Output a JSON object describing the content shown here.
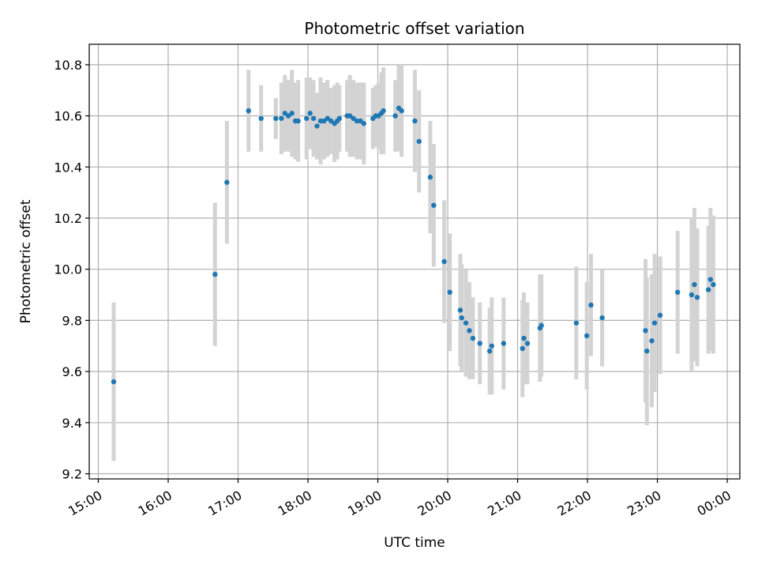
{
  "chart_data": {
    "type": "scatter",
    "title": "Photometric offset variation",
    "xlabel": "UTC time",
    "ylabel": "Photometric offset",
    "grid": true,
    "xlim": [
      14.87,
      24.18
    ],
    "ylim": [
      9.18,
      10.88
    ],
    "x_ticks": [
      15,
      16,
      17,
      18,
      19,
      20,
      21,
      22,
      23,
      24
    ],
    "x_tick_labels": [
      "15:00",
      "16:00",
      "17:00",
      "18:00",
      "19:00",
      "20:00",
      "21:00",
      "22:00",
      "23:00",
      "00:00"
    ],
    "y_ticks": [
      9.2,
      9.4,
      9.6,
      9.8,
      10.0,
      10.2,
      10.4,
      10.6,
      10.8
    ],
    "y_tick_labels": [
      "9.2",
      "9.4",
      "9.6",
      "9.8",
      "10.0",
      "10.2",
      "10.4",
      "10.6",
      "10.8"
    ],
    "series": [
      {
        "name": "offset",
        "marker_color": "#1f77b4",
        "errorbar_color": "#d3d3d3",
        "x": [
          15.22,
          16.67,
          16.84,
          17.15,
          17.33,
          17.54,
          17.62,
          17.67,
          17.72,
          17.77,
          17.82,
          17.86,
          17.98,
          18.03,
          18.08,
          18.13,
          18.18,
          18.23,
          18.28,
          18.33,
          18.38,
          18.42,
          18.45,
          18.56,
          18.6,
          18.65,
          18.7,
          18.75,
          18.8,
          18.93,
          18.97,
          19.01,
          19.05,
          19.08,
          19.25,
          19.3,
          19.34,
          19.53,
          19.59,
          19.75,
          19.8,
          19.95,
          20.03,
          20.18,
          20.2,
          20.26,
          20.31,
          20.36,
          20.46,
          20.6,
          20.63,
          20.8,
          21.07,
          21.09,
          21.14,
          21.32,
          21.34,
          21.84,
          21.99,
          22.05,
          22.21,
          22.83,
          22.85,
          22.92,
          22.96,
          23.04,
          23.29,
          23.49,
          23.53,
          23.57,
          23.73,
          23.76,
          23.8
        ],
        "y": [
          9.56,
          9.98,
          10.34,
          10.62,
          10.59,
          10.59,
          10.59,
          10.61,
          10.6,
          10.61,
          10.58,
          10.58,
          10.59,
          10.61,
          10.59,
          10.56,
          10.58,
          10.58,
          10.59,
          10.58,
          10.57,
          10.58,
          10.59,
          10.6,
          10.6,
          10.59,
          10.58,
          10.58,
          10.57,
          10.59,
          10.6,
          10.6,
          10.61,
          10.62,
          10.6,
          10.63,
          10.62,
          10.58,
          10.5,
          10.36,
          10.25,
          10.03,
          9.91,
          9.84,
          9.81,
          9.79,
          9.76,
          9.73,
          9.71,
          9.68,
          9.7,
          9.71,
          9.69,
          9.73,
          9.71,
          9.77,
          9.78,
          9.79,
          9.74,
          9.86,
          9.81,
          9.76,
          9.68,
          9.72,
          9.79,
          9.82,
          9.91,
          9.9,
          9.94,
          9.89,
          9.92,
          9.96,
          9.94
        ],
        "err": [
          0.31,
          0.28,
          0.24,
          0.16,
          0.13,
          0.08,
          0.14,
          0.15,
          0.14,
          0.17,
          0.15,
          0.16,
          0.16,
          0.14,
          0.15,
          0.13,
          0.17,
          0.15,
          0.15,
          0.13,
          0.15,
          0.15,
          0.13,
          0.14,
          0.16,
          0.15,
          0.15,
          0.15,
          0.16,
          0.12,
          0.12,
          0.13,
          0.16,
          0.17,
          0.14,
          0.17,
          0.18,
          0.2,
          0.2,
          0.22,
          0.24,
          0.24,
          0.23,
          0.22,
          0.21,
          0.21,
          0.19,
          0.16,
          0.16,
          0.17,
          0.19,
          0.18,
          0.19,
          0.18,
          0.16,
          0.21,
          0.2,
          0.22,
          0.21,
          0.2,
          0.19,
          0.28,
          0.29,
          0.26,
          0.27,
          0.23,
          0.24,
          0.3,
          0.3,
          0.27,
          0.25,
          0.28,
          0.27
        ]
      }
    ]
  }
}
